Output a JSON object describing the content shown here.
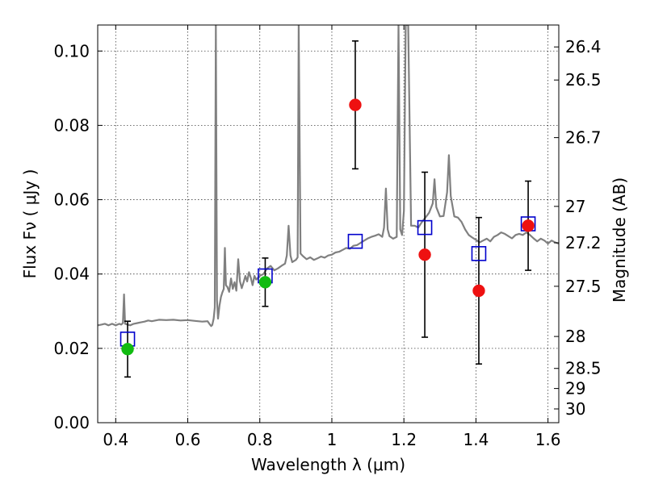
{
  "chart_data": {
    "type": "scatter",
    "title": "",
    "xlabel": "Wavelength  λ (μm)",
    "ylabel": "Flux  Fν  ( μJy )",
    "right_ylabel": "Magnitude (AB)",
    "xlim": [
      0.35,
      1.63
    ],
    "ylim": [
      0.0,
      0.107
    ],
    "x_ticks": [
      0.4,
      0.6,
      0.8,
      1.0,
      1.2,
      1.4,
      1.6
    ],
    "x_tick_labels": [
      "0.4",
      "0.6",
      "0.8",
      "1",
      "1.2",
      "1.4",
      "1.6"
    ],
    "y_ticks": [
      0.0,
      0.02,
      0.04,
      0.06,
      0.08,
      0.1
    ],
    "y_tick_labels": [
      "0.00",
      "0.02",
      "0.04",
      "0.06",
      "0.08",
      "0.10"
    ],
    "right_ticks": [
      {
        "label": "26.4",
        "flux": 0.1011
      },
      {
        "label": "26.5",
        "flux": 0.0922
      },
      {
        "label": "26.7",
        "flux": 0.0767
      },
      {
        "label": "27",
        "flux": 0.0582
      },
      {
        "label": "27.2",
        "flux": 0.0484
      },
      {
        "label": "27.5",
        "flux": 0.0367
      },
      {
        "label": "28",
        "flux": 0.0232
      },
      {
        "label": "28.5",
        "flux": 0.0146
      },
      {
        "label": "29",
        "flux": 0.0092
      },
      {
        "label": "30",
        "flux": 0.0037
      }
    ],
    "grid": true,
    "series": [
      {
        "kind": "line",
        "color": "#808080",
        "points": [
          [
            0.35,
            0.0262
          ],
          [
            0.36,
            0.0264
          ],
          [
            0.37,
            0.0266
          ],
          [
            0.38,
            0.0262
          ],
          [
            0.39,
            0.0266
          ],
          [
            0.4,
            0.0262
          ],
          [
            0.41,
            0.0266
          ],
          [
            0.415,
            0.0264
          ],
          [
            0.42,
            0.0268
          ],
          [
            0.423,
            0.0345
          ],
          [
            0.426,
            0.0266
          ],
          [
            0.43,
            0.0265
          ],
          [
            0.44,
            0.0262
          ],
          [
            0.45,
            0.0266
          ],
          [
            0.46,
            0.0268
          ],
          [
            0.47,
            0.027
          ],
          [
            0.48,
            0.0272
          ],
          [
            0.49,
            0.0275
          ],
          [
            0.5,
            0.0273
          ],
          [
            0.52,
            0.0277
          ],
          [
            0.54,
            0.0276
          ],
          [
            0.56,
            0.0277
          ],
          [
            0.58,
            0.0275
          ],
          [
            0.6,
            0.0276
          ],
          [
            0.62,
            0.0274
          ],
          [
            0.64,
            0.0272
          ],
          [
            0.655,
            0.0273
          ],
          [
            0.66,
            0.0266
          ],
          [
            0.665,
            0.026
          ],
          [
            0.668,
            0.0263
          ],
          [
            0.672,
            0.028
          ],
          [
            0.675,
            0.031
          ],
          [
            0.678,
            0.107
          ],
          [
            0.681,
            0.033
          ],
          [
            0.684,
            0.028
          ],
          [
            0.688,
            0.0315
          ],
          [
            0.692,
            0.0338
          ],
          [
            0.696,
            0.035
          ],
          [
            0.7,
            0.036
          ],
          [
            0.703,
            0.047
          ],
          [
            0.706,
            0.037
          ],
          [
            0.71,
            0.0365
          ],
          [
            0.715,
            0.0352
          ],
          [
            0.72,
            0.0388
          ],
          [
            0.725,
            0.036
          ],
          [
            0.73,
            0.0378
          ],
          [
            0.735,
            0.0355
          ],
          [
            0.74,
            0.044
          ],
          [
            0.745,
            0.038
          ],
          [
            0.75,
            0.0362
          ],
          [
            0.755,
            0.0378
          ],
          [
            0.76,
            0.0395
          ],
          [
            0.765,
            0.038
          ],
          [
            0.77,
            0.0405
          ],
          [
            0.775,
            0.039
          ],
          [
            0.78,
            0.037
          ],
          [
            0.785,
            0.0395
          ],
          [
            0.79,
            0.0385
          ],
          [
            0.8,
            0.0395
          ],
          [
            0.81,
            0.04
          ],
          [
            0.82,
            0.0415
          ],
          [
            0.83,
            0.0422
          ],
          [
            0.84,
            0.041
          ],
          [
            0.85,
            0.0415
          ],
          [
            0.86,
            0.0422
          ],
          [
            0.87,
            0.0428
          ],
          [
            0.875,
            0.045
          ],
          [
            0.88,
            0.053
          ],
          [
            0.885,
            0.045
          ],
          [
            0.89,
            0.0432
          ],
          [
            0.895,
            0.0435
          ],
          [
            0.9,
            0.0438
          ],
          [
            0.905,
            0.0445
          ],
          [
            0.908,
            0.107
          ],
          [
            0.913,
            0.0455
          ],
          [
            0.92,
            0.0448
          ],
          [
            0.93,
            0.044
          ],
          [
            0.94,
            0.0445
          ],
          [
            0.95,
            0.0438
          ],
          [
            0.96,
            0.0442
          ],
          [
            0.97,
            0.0447
          ],
          [
            0.98,
            0.0444
          ],
          [
            0.99,
            0.045
          ],
          [
            1.0,
            0.0452
          ],
          [
            1.01,
            0.0458
          ],
          [
            1.02,
            0.046
          ],
          [
            1.03,
            0.0465
          ],
          [
            1.04,
            0.047
          ],
          [
            1.05,
            0.0468
          ],
          [
            1.06,
            0.0476
          ],
          [
            1.07,
            0.0478
          ],
          [
            1.08,
            0.0484
          ],
          [
            1.09,
            0.049
          ],
          [
            1.1,
            0.0496
          ],
          [
            1.11,
            0.05
          ],
          [
            1.12,
            0.0503
          ],
          [
            1.13,
            0.0507
          ],
          [
            1.14,
            0.05
          ],
          [
            1.145,
            0.0525
          ],
          [
            1.15,
            0.063
          ],
          [
            1.155,
            0.052
          ],
          [
            1.16,
            0.0502
          ],
          [
            1.17,
            0.0495
          ],
          [
            1.18,
            0.05
          ],
          [
            1.185,
            0.107
          ],
          [
            1.19,
            0.052
          ],
          [
            1.195,
            0.0505
          ],
          [
            1.2,
            0.057
          ],
          [
            1.205,
            0.107
          ],
          [
            1.212,
            0.107
          ],
          [
            1.22,
            0.053
          ],
          [
            1.23,
            0.053
          ],
          [
            1.24,
            0.0525
          ],
          [
            1.25,
            0.054
          ],
          [
            1.26,
            0.0552
          ],
          [
            1.27,
            0.0565
          ],
          [
            1.28,
            0.059
          ],
          [
            1.285,
            0.0655
          ],
          [
            1.29,
            0.058
          ],
          [
            1.3,
            0.0555
          ],
          [
            1.31,
            0.0556
          ],
          [
            1.32,
            0.062
          ],
          [
            1.325,
            0.072
          ],
          [
            1.33,
            0.061
          ],
          [
            1.34,
            0.0555
          ],
          [
            1.35,
            0.0552
          ],
          [
            1.36,
            0.054
          ],
          [
            1.37,
            0.052
          ],
          [
            1.38,
            0.0505
          ],
          [
            1.39,
            0.0498
          ],
          [
            1.4,
            0.0492
          ],
          [
            1.41,
            0.0485
          ],
          [
            1.42,
            0.049
          ],
          [
            1.43,
            0.0495
          ],
          [
            1.44,
            0.0488
          ],
          [
            1.45,
            0.05
          ],
          [
            1.46,
            0.0505
          ],
          [
            1.47,
            0.0512
          ],
          [
            1.48,
            0.0508
          ],
          [
            1.49,
            0.0502
          ],
          [
            1.5,
            0.0496
          ],
          [
            1.51,
            0.0505
          ],
          [
            1.52,
            0.0508
          ],
          [
            1.53,
            0.0505
          ],
          [
            1.54,
            0.0512
          ],
          [
            1.55,
            0.0505
          ],
          [
            1.56,
            0.0496
          ],
          [
            1.57,
            0.0488
          ],
          [
            1.58,
            0.0495
          ],
          [
            1.59,
            0.049
          ],
          [
            1.6,
            0.0482
          ],
          [
            1.61,
            0.049
          ],
          [
            1.62,
            0.0485
          ],
          [
            1.63,
            0.0482
          ]
        ]
      },
      {
        "kind": "square-marker",
        "color": "#0000cc",
        "points": [
          [
            0.433,
            0.0225
          ],
          [
            0.815,
            0.0395
          ],
          [
            1.065,
            0.0488
          ],
          [
            1.258,
            0.0525
          ],
          [
            1.408,
            0.0455
          ],
          [
            1.545,
            0.0535
          ]
        ]
      },
      {
        "kind": "circle-errorbar",
        "color": "#11bb11",
        "points": [
          {
            "x": 0.433,
            "y": 0.0198,
            "err_low": 0.0075,
            "err_high": 0.0075
          },
          {
            "x": 0.815,
            "y": 0.0378,
            "err_low": 0.0065,
            "err_high": 0.0065
          }
        ]
      },
      {
        "kind": "circle-errorbar",
        "color": "#ee1111",
        "points": [
          {
            "x": 1.065,
            "y": 0.0855,
            "err_low": 0.0172,
            "err_high": 0.0172
          },
          {
            "x": 1.258,
            "y": 0.0452,
            "err_low": 0.0222,
            "err_high": 0.0222
          },
          {
            "x": 1.408,
            "y": 0.0355,
            "err_low": 0.0197,
            "err_high": 0.0197
          },
          {
            "x": 1.545,
            "y": 0.053,
            "err_low": 0.012,
            "err_high": 0.012
          }
        ]
      }
    ]
  }
}
